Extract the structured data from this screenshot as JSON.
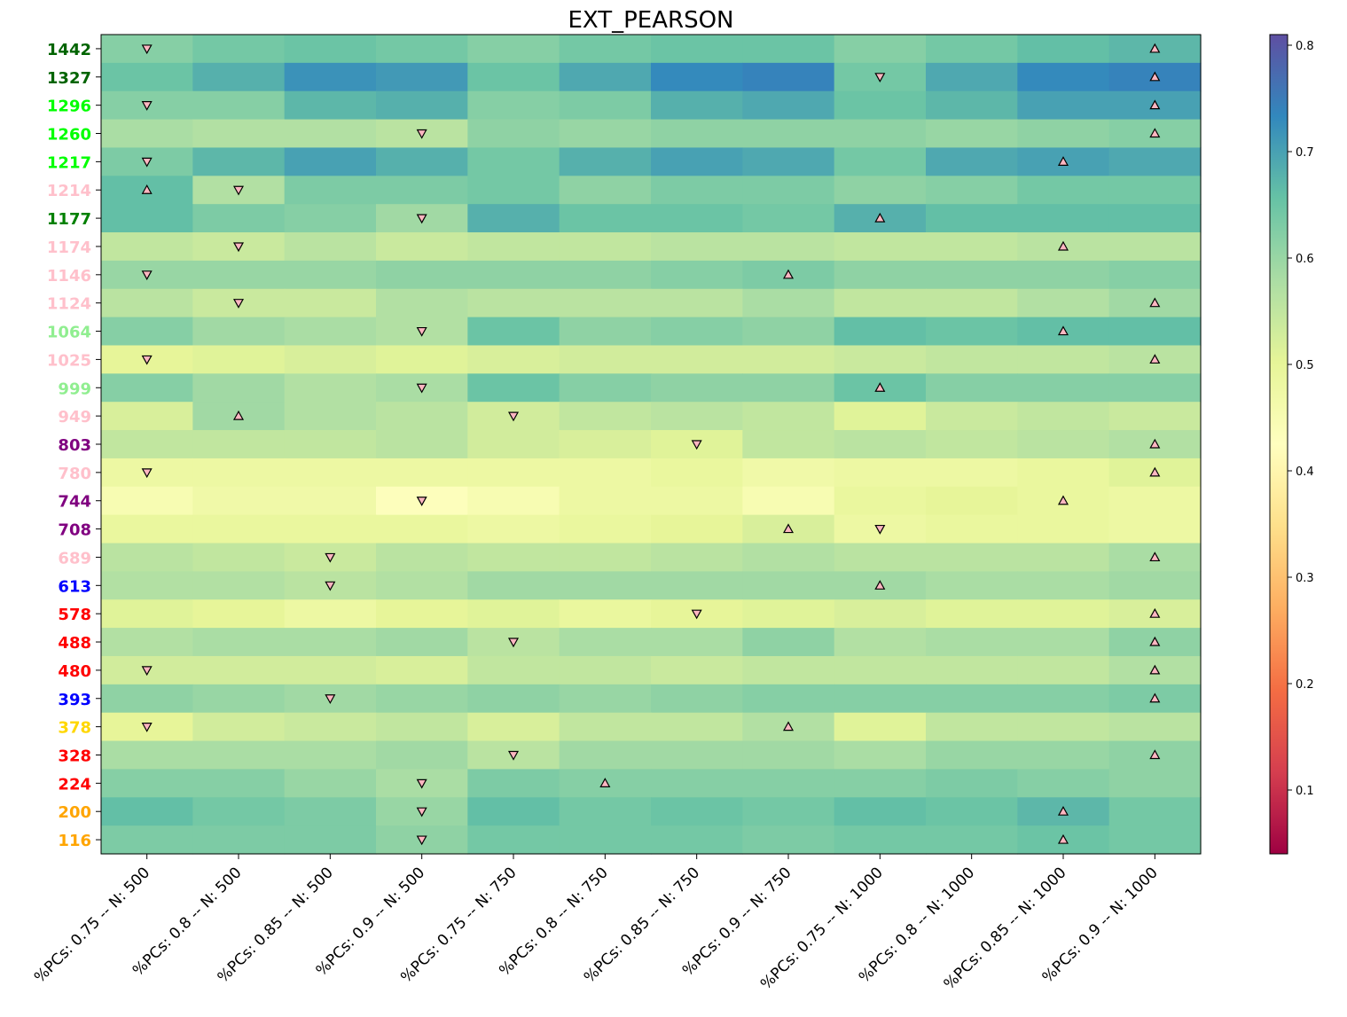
{
  "chart_data": {
    "type": "heatmap",
    "title": "EXT_PEARSON",
    "x_categories": [
      "%PCs: 0.75 -- N: 500",
      "%PCs: 0.8 -- N: 500",
      "%PCs: 0.85 -- N: 500",
      "%PCs: 0.9 -- N: 500",
      "%PCs: 0.75 -- N: 750",
      "%PCs: 0.8 -- N: 750",
      "%PCs: 0.85 -- N: 750",
      "%PCs: 0.9 -- N: 750",
      "%PCs: 0.75 -- N: 1000",
      "%PCs: 0.8 -- N: 1000",
      "%PCs: 0.85 -- N: 1000",
      "%PCs: 0.9 -- N: 1000"
    ],
    "y_categories": [
      "1442",
      "1327",
      "1296",
      "1260",
      "1217",
      "1214",
      "1177",
      "1174",
      "1146",
      "1124",
      "1064",
      "1025",
      "999",
      "949",
      "803",
      "780",
      "744",
      "708",
      "689",
      "613",
      "578",
      "488",
      "480",
      "393",
      "378",
      "328",
      "224",
      "200",
      "116"
    ],
    "y_label_colors": [
      "#006400",
      "#006400",
      "#00ff00",
      "#00ff00",
      "#00ff00",
      "#ffc0cb",
      "#008000",
      "#ffc0cb",
      "#ffc0cb",
      "#ffc0cb",
      "#90ee90",
      "#ffc0cb",
      "#90ee90",
      "#ffc0cb",
      "#800080",
      "#ffc0cb",
      "#800080",
      "#800080",
      "#ffc0cb",
      "#0000ff",
      "#ff0000",
      "#ff0000",
      "#ff0000",
      "#0000ff",
      "#ffd700",
      "#ff0000",
      "#ff0000",
      "#ffa500",
      "#ffa500"
    ],
    "values": [
      [
        0.62,
        0.64,
        0.65,
        0.64,
        0.62,
        0.64,
        0.65,
        0.65,
        0.62,
        0.64,
        0.66,
        0.67
      ],
      [
        0.65,
        0.68,
        0.72,
        0.71,
        0.65,
        0.69,
        0.73,
        0.74,
        0.64,
        0.69,
        0.73,
        0.74
      ],
      [
        0.62,
        0.62,
        0.67,
        0.68,
        0.62,
        0.63,
        0.68,
        0.69,
        0.65,
        0.67,
        0.7,
        0.7
      ],
      [
        0.58,
        0.57,
        0.57,
        0.56,
        0.61,
        0.6,
        0.61,
        0.61,
        0.61,
        0.6,
        0.61,
        0.62
      ],
      [
        0.63,
        0.67,
        0.7,
        0.68,
        0.64,
        0.68,
        0.7,
        0.69,
        0.64,
        0.69,
        0.7,
        0.69
      ],
      [
        0.66,
        0.57,
        0.63,
        0.63,
        0.64,
        0.61,
        0.63,
        0.63,
        0.61,
        0.62,
        0.64,
        0.64
      ],
      [
        0.66,
        0.63,
        0.62,
        0.59,
        0.68,
        0.65,
        0.65,
        0.64,
        0.68,
        0.66,
        0.66,
        0.66
      ],
      [
        0.55,
        0.54,
        0.56,
        0.54,
        0.55,
        0.55,
        0.56,
        0.56,
        0.55,
        0.55,
        0.56,
        0.56
      ],
      [
        0.6,
        0.6,
        0.6,
        0.61,
        0.61,
        0.61,
        0.62,
        0.63,
        0.61,
        0.61,
        0.61,
        0.62
      ],
      [
        0.56,
        0.54,
        0.54,
        0.57,
        0.56,
        0.56,
        0.56,
        0.58,
        0.55,
        0.55,
        0.57,
        0.59
      ],
      [
        0.62,
        0.59,
        0.58,
        0.57,
        0.65,
        0.61,
        0.62,
        0.61,
        0.66,
        0.65,
        0.66,
        0.66
      ],
      [
        0.5,
        0.51,
        0.52,
        0.51,
        0.52,
        0.53,
        0.53,
        0.53,
        0.54,
        0.55,
        0.55,
        0.56
      ],
      [
        0.62,
        0.59,
        0.57,
        0.58,
        0.65,
        0.62,
        0.61,
        0.61,
        0.65,
        0.62,
        0.62,
        0.62
      ],
      [
        0.52,
        0.59,
        0.57,
        0.56,
        0.53,
        0.55,
        0.56,
        0.55,
        0.51,
        0.54,
        0.55,
        0.54
      ],
      [
        0.55,
        0.55,
        0.55,
        0.56,
        0.53,
        0.52,
        0.51,
        0.55,
        0.56,
        0.55,
        0.56,
        0.57
      ],
      [
        0.48,
        0.48,
        0.48,
        0.48,
        0.48,
        0.48,
        0.49,
        0.47,
        0.48,
        0.48,
        0.49,
        0.51
      ],
      [
        0.45,
        0.47,
        0.47,
        0.43,
        0.45,
        0.48,
        0.48,
        0.45,
        0.49,
        0.5,
        0.49,
        0.48
      ],
      [
        0.49,
        0.49,
        0.49,
        0.49,
        0.48,
        0.49,
        0.5,
        0.52,
        0.48,
        0.49,
        0.49,
        0.48
      ],
      [
        0.56,
        0.55,
        0.54,
        0.56,
        0.55,
        0.55,
        0.56,
        0.57,
        0.56,
        0.56,
        0.56,
        0.58
      ],
      [
        0.57,
        0.57,
        0.56,
        0.57,
        0.59,
        0.59,
        0.59,
        0.59,
        0.59,
        0.58,
        0.58,
        0.59
      ],
      [
        0.51,
        0.5,
        0.48,
        0.5,
        0.51,
        0.49,
        0.5,
        0.51,
        0.52,
        0.51,
        0.51,
        0.52
      ],
      [
        0.57,
        0.58,
        0.58,
        0.59,
        0.56,
        0.58,
        0.58,
        0.61,
        0.57,
        0.58,
        0.58,
        0.61
      ],
      [
        0.53,
        0.53,
        0.53,
        0.52,
        0.55,
        0.55,
        0.54,
        0.55,
        0.55,
        0.55,
        0.55,
        0.57
      ],
      [
        0.61,
        0.6,
        0.59,
        0.6,
        0.61,
        0.6,
        0.61,
        0.62,
        0.62,
        0.62,
        0.62,
        0.63
      ],
      [
        0.5,
        0.53,
        0.54,
        0.55,
        0.52,
        0.55,
        0.55,
        0.57,
        0.51,
        0.55,
        0.55,
        0.56
      ],
      [
        0.58,
        0.58,
        0.58,
        0.59,
        0.56,
        0.59,
        0.59,
        0.59,
        0.58,
        0.6,
        0.6,
        0.61
      ],
      [
        0.62,
        0.62,
        0.6,
        0.58,
        0.63,
        0.62,
        0.62,
        0.62,
        0.62,
        0.63,
        0.62,
        0.61
      ],
      [
        0.66,
        0.64,
        0.63,
        0.6,
        0.66,
        0.64,
        0.65,
        0.64,
        0.66,
        0.65,
        0.67,
        0.64
      ],
      [
        0.63,
        0.63,
        0.63,
        0.61,
        0.64,
        0.64,
        0.64,
        0.63,
        0.64,
        0.64,
        0.65,
        0.64
      ]
    ],
    "markers": [
      {
        "row": 0,
        "col": 0,
        "symbol": "down"
      },
      {
        "row": 0,
        "col": 11,
        "symbol": "up"
      },
      {
        "row": 1,
        "col": 8,
        "symbol": "down"
      },
      {
        "row": 1,
        "col": 11,
        "symbol": "up"
      },
      {
        "row": 2,
        "col": 0,
        "symbol": "down"
      },
      {
        "row": 2,
        "col": 11,
        "symbol": "up"
      },
      {
        "row": 3,
        "col": 3,
        "symbol": "down"
      },
      {
        "row": 3,
        "col": 11,
        "symbol": "up"
      },
      {
        "row": 4,
        "col": 0,
        "symbol": "down"
      },
      {
        "row": 4,
        "col": 10,
        "symbol": "up"
      },
      {
        "row": 5,
        "col": 0,
        "symbol": "up"
      },
      {
        "row": 5,
        "col": 1,
        "symbol": "down"
      },
      {
        "row": 6,
        "col": 3,
        "symbol": "down"
      },
      {
        "row": 6,
        "col": 8,
        "symbol": "up"
      },
      {
        "row": 7,
        "col": 1,
        "symbol": "down"
      },
      {
        "row": 7,
        "col": 10,
        "symbol": "up"
      },
      {
        "row": 8,
        "col": 0,
        "symbol": "down"
      },
      {
        "row": 8,
        "col": 7,
        "symbol": "up"
      },
      {
        "row": 9,
        "col": 1,
        "symbol": "down"
      },
      {
        "row": 9,
        "col": 11,
        "symbol": "up"
      },
      {
        "row": 10,
        "col": 3,
        "symbol": "down"
      },
      {
        "row": 10,
        "col": 10,
        "symbol": "up"
      },
      {
        "row": 11,
        "col": 0,
        "symbol": "down"
      },
      {
        "row": 11,
        "col": 11,
        "symbol": "up"
      },
      {
        "row": 12,
        "col": 3,
        "symbol": "down"
      },
      {
        "row": 12,
        "col": 8,
        "symbol": "up"
      },
      {
        "row": 13,
        "col": 1,
        "symbol": "up"
      },
      {
        "row": 13,
        "col": 4,
        "symbol": "down"
      },
      {
        "row": 14,
        "col": 6,
        "symbol": "down"
      },
      {
        "row": 14,
        "col": 11,
        "symbol": "up"
      },
      {
        "row": 15,
        "col": 0,
        "symbol": "down"
      },
      {
        "row": 15,
        "col": 11,
        "symbol": "up"
      },
      {
        "row": 16,
        "col": 3,
        "symbol": "down"
      },
      {
        "row": 16,
        "col": 10,
        "symbol": "up"
      },
      {
        "row": 17,
        "col": 7,
        "symbol": "up"
      },
      {
        "row": 17,
        "col": 8,
        "symbol": "down"
      },
      {
        "row": 18,
        "col": 2,
        "symbol": "down"
      },
      {
        "row": 18,
        "col": 11,
        "symbol": "up"
      },
      {
        "row": 19,
        "col": 2,
        "symbol": "down"
      },
      {
        "row": 19,
        "col": 8,
        "symbol": "up"
      },
      {
        "row": 20,
        "col": 6,
        "symbol": "down"
      },
      {
        "row": 20,
        "col": 11,
        "symbol": "up"
      },
      {
        "row": 21,
        "col": 4,
        "symbol": "down"
      },
      {
        "row": 21,
        "col": 11,
        "symbol": "up"
      },
      {
        "row": 22,
        "col": 0,
        "symbol": "down"
      },
      {
        "row": 22,
        "col": 11,
        "symbol": "up"
      },
      {
        "row": 23,
        "col": 2,
        "symbol": "down"
      },
      {
        "row": 23,
        "col": 11,
        "symbol": "up"
      },
      {
        "row": 24,
        "col": 0,
        "symbol": "down"
      },
      {
        "row": 24,
        "col": 7,
        "symbol": "up"
      },
      {
        "row": 25,
        "col": 4,
        "symbol": "down"
      },
      {
        "row": 25,
        "col": 11,
        "symbol": "up"
      },
      {
        "row": 26,
        "col": 3,
        "symbol": "down"
      },
      {
        "row": 26,
        "col": 5,
        "symbol": "up"
      },
      {
        "row": 27,
        "col": 3,
        "symbol": "down"
      },
      {
        "row": 27,
        "col": 10,
        "symbol": "up"
      },
      {
        "row": 28,
        "col": 3,
        "symbol": "down"
      },
      {
        "row": 28,
        "col": 10,
        "symbol": "up"
      }
    ],
    "marker_color": "#ffb6c1",
    "colorbar": {
      "colormap": "Spectral",
      "vmin": 0.04,
      "vmax": 0.81,
      "ticks": [
        0.1,
        0.2,
        0.3,
        0.4,
        0.5,
        0.6,
        0.7,
        0.8
      ],
      "tick_labels": [
        "0.1",
        "0.2",
        "0.3",
        "0.4",
        "0.5",
        "0.6",
        "0.7",
        "0.8"
      ]
    }
  }
}
